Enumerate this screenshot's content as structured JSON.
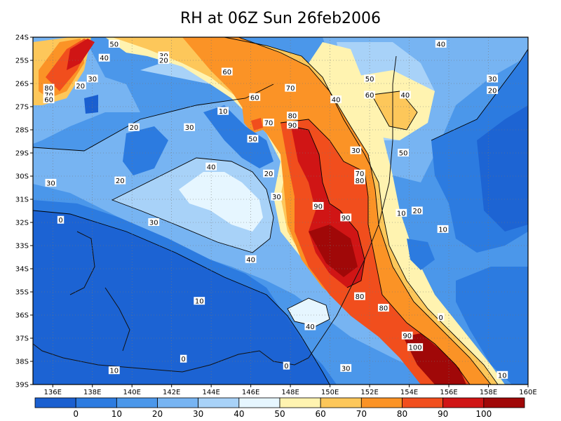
{
  "title": "RH at 06Z Sun 26feb2006",
  "axes": {
    "lon_labels": [
      "136E",
      "138E",
      "140E",
      "142E",
      "144E",
      "146E",
      "148E",
      "150E",
      "152E",
      "154E",
      "156E",
      "158E",
      "160E"
    ],
    "lon_values": [
      136,
      138,
      140,
      142,
      144,
      146,
      148,
      150,
      152,
      154,
      156,
      158,
      160
    ],
    "lat_labels": [
      "24S",
      "25S",
      "26S",
      "27S",
      "28S",
      "29S",
      "30S",
      "31S",
      "32S",
      "33S",
      "34S",
      "35S",
      "36S",
      "37S",
      "38S",
      "39S"
    ],
    "lat_values": [
      -24,
      -25,
      -26,
      -27,
      -28,
      -29,
      -30,
      -31,
      -32,
      -33,
      -34,
      -35,
      -36,
      -37,
      -38,
      -39
    ],
    "lon_range": [
      135,
      160
    ],
    "lat_range": [
      -39,
      -24
    ],
    "grid": "dotted"
  },
  "colorbar": {
    "tick_labels": [
      "0",
      "10",
      "20",
      "30",
      "40",
      "50",
      "60",
      "70",
      "80",
      "90",
      "100"
    ],
    "colors": [
      "#1a5fd0",
      "#2c7be0",
      "#4b97ea",
      "#77b4f2",
      "#a8d2f8",
      "#e6f6ff",
      "#fff3b0",
      "#fdc75a",
      "#fb9326",
      "#f14e1d",
      "#d01515",
      "#a00808"
    ]
  },
  "contour_labels": [
    {
      "text": "50",
      "lon": 139.1,
      "lat": -24.3
    },
    {
      "text": "40",
      "lon": 138.6,
      "lat": -24.9
    },
    {
      "text": "30",
      "lon": 141.6,
      "lat": -24.8
    },
    {
      "text": "20",
      "lon": 141.6,
      "lat": -25.0
    },
    {
      "text": "60",
      "lon": 144.8,
      "lat": -25.5
    },
    {
      "text": "70",
      "lon": 148.0,
      "lat": -26.2
    },
    {
      "text": "30",
      "lon": 138.0,
      "lat": -25.8
    },
    {
      "text": "20",
      "lon": 137.4,
      "lat": -26.1
    },
    {
      "text": "80",
      "lon": 135.8,
      "lat": -26.2
    },
    {
      "text": "70",
      "lon": 135.8,
      "lat": -26.5
    },
    {
      "text": "60",
      "lon": 135.8,
      "lat": -26.7
    },
    {
      "text": "60",
      "lon": 146.2,
      "lat": -26.6
    },
    {
      "text": "10",
      "lon": 144.6,
      "lat": -27.2
    },
    {
      "text": "70",
      "lon": 146.9,
      "lat": -27.7
    },
    {
      "text": "80",
      "lon": 148.1,
      "lat": -27.4
    },
    {
      "text": "90",
      "lon": 148.1,
      "lat": -27.8
    },
    {
      "text": "50",
      "lon": 146.1,
      "lat": -28.4
    },
    {
      "text": "20",
      "lon": 140.1,
      "lat": -27.9
    },
    {
      "text": "30",
      "lon": 142.9,
      "lat": -27.9
    },
    {
      "text": "40",
      "lon": 144.0,
      "lat": -29.6
    },
    {
      "text": "20",
      "lon": 146.9,
      "lat": -29.9
    },
    {
      "text": "20",
      "lon": 139.4,
      "lat": -30.2
    },
    {
      "text": "30",
      "lon": 135.9,
      "lat": -30.3
    },
    {
      "text": "30",
      "lon": 147.3,
      "lat": -30.9
    },
    {
      "text": "90",
      "lon": 149.4,
      "lat": -31.3
    },
    {
      "text": "30",
      "lon": 141.1,
      "lat": -32.0
    },
    {
      "text": "0",
      "lon": 136.4,
      "lat": -31.9
    },
    {
      "text": "90",
      "lon": 150.8,
      "lat": -31.8
    },
    {
      "text": "50",
      "lon": 152.0,
      "lat": -25.8
    },
    {
      "text": "40",
      "lon": 155.6,
      "lat": -24.3
    },
    {
      "text": "60",
      "lon": 152.0,
      "lat": -26.5
    },
    {
      "text": "40",
      "lon": 150.3,
      "lat": -26.7
    },
    {
      "text": "40",
      "lon": 153.8,
      "lat": -26.5
    },
    {
      "text": "30",
      "lon": 158.2,
      "lat": -25.8
    },
    {
      "text": "20",
      "lon": 158.2,
      "lat": -26.3
    },
    {
      "text": "30",
      "lon": 151.3,
      "lat": -28.9
    },
    {
      "text": "50",
      "lon": 153.7,
      "lat": -29.0
    },
    {
      "text": "70",
      "lon": 151.5,
      "lat": -29.9
    },
    {
      "text": "80",
      "lon": 151.5,
      "lat": -30.2
    },
    {
      "text": "10",
      "lon": 153.6,
      "lat": -31.6
    },
    {
      "text": "20",
      "lon": 154.4,
      "lat": -31.5
    },
    {
      "text": "10",
      "lon": 155.7,
      "lat": -32.3
    },
    {
      "text": "40",
      "lon": 146.0,
      "lat": -33.6
    },
    {
      "text": "10",
      "lon": 143.4,
      "lat": -35.4
    },
    {
      "text": "80",
      "lon": 151.5,
      "lat": -35.2
    },
    {
      "text": "80",
      "lon": 152.7,
      "lat": -35.7
    },
    {
      "text": "0",
      "lon": 155.6,
      "lat": -36.1
    },
    {
      "text": "40",
      "lon": 149.0,
      "lat": -36.5
    },
    {
      "text": "90",
      "lon": 153.9,
      "lat": -36.9
    },
    {
      "text": "100",
      "lon": 154.3,
      "lat": -37.4
    },
    {
      "text": "0",
      "lon": 142.6,
      "lat": -37.9
    },
    {
      "text": "0",
      "lon": 147.8,
      "lat": -38.2
    },
    {
      "text": "30",
      "lon": 150.8,
      "lat": -38.3
    },
    {
      "text": "10",
      "lon": 139.1,
      "lat": -38.4
    },
    {
      "text": "10",
      "lon": 158.7,
      "lat": -38.6
    }
  ]
}
